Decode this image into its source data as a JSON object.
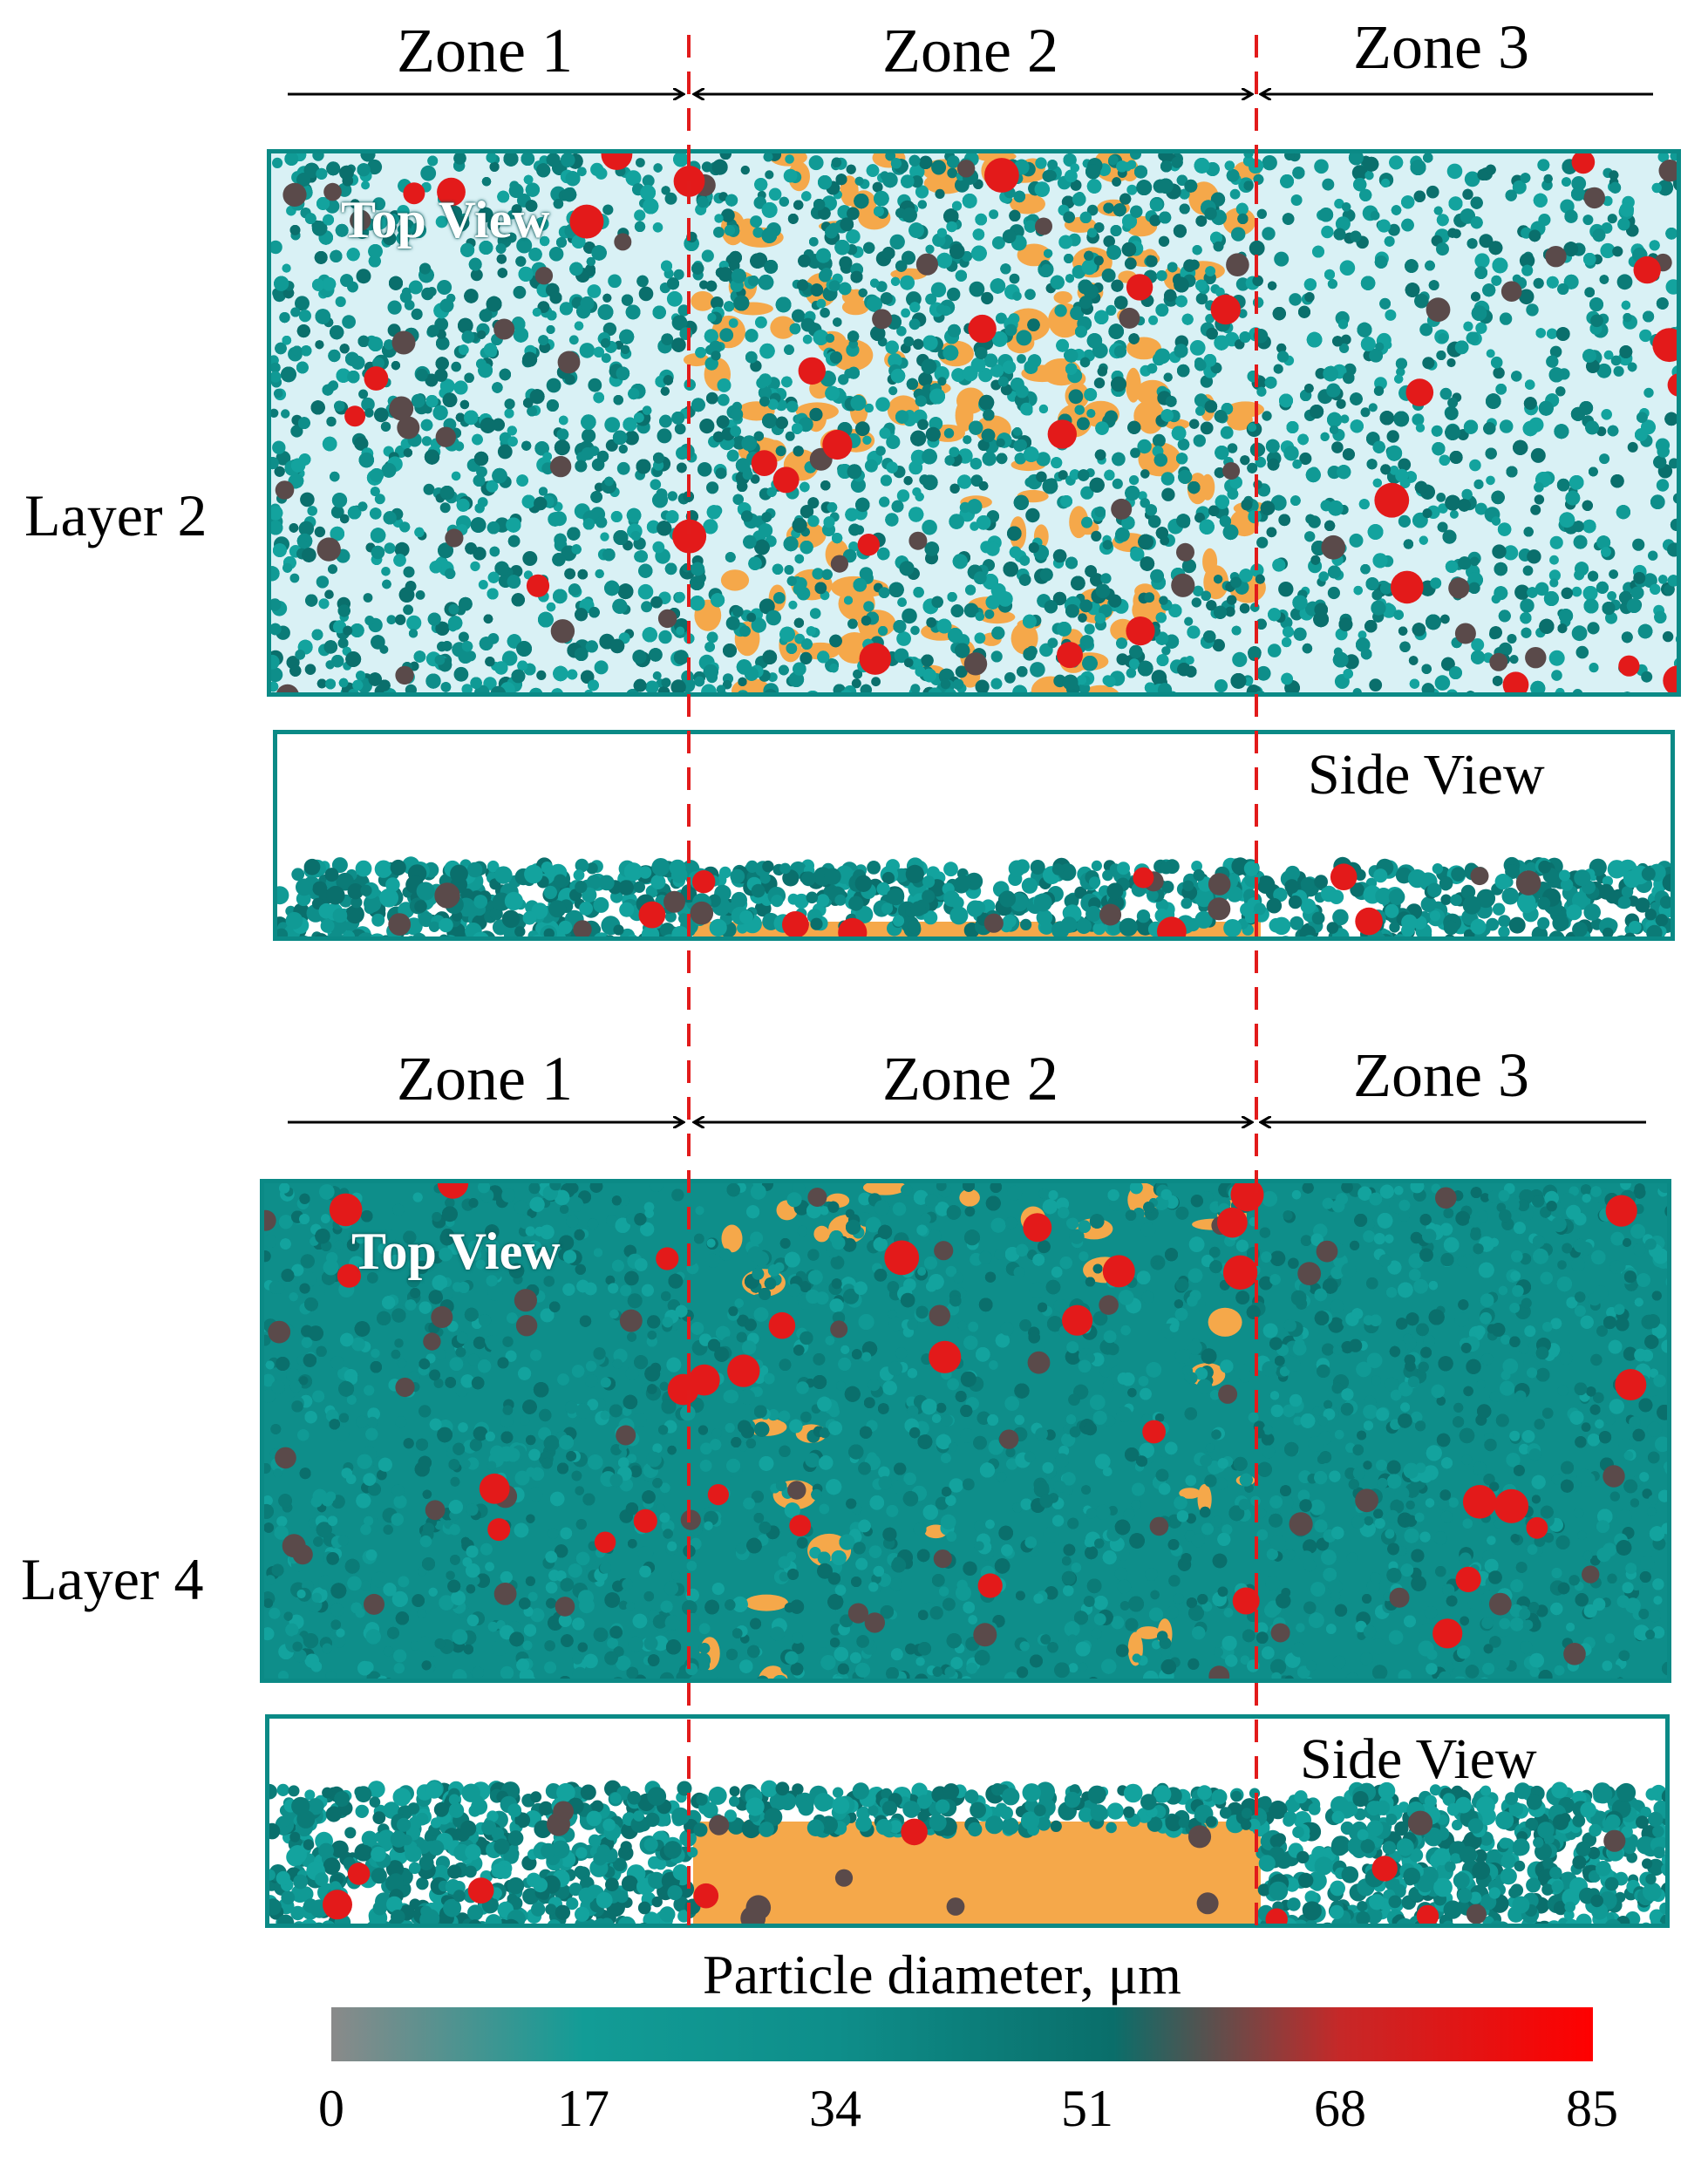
{
  "layers": [
    {
      "label": "Layer 2",
      "zones": [
        "Zone 1",
        "Zone 2",
        "Zone 3"
      ],
      "top_view_label": "Top View",
      "side_view_label": "Side View"
    },
    {
      "label": "Layer 4",
      "zones": [
        "Zone 1",
        "Zone 2",
        "Zone 3"
      ],
      "top_view_label": "Top View",
      "side_view_label": "Side View"
    }
  ],
  "colorbar": {
    "title": "Particle diameter, μm",
    "ticks": [
      "0",
      "17",
      "34",
      "51",
      "68",
      "85"
    ],
    "range": [
      0,
      85
    ],
    "colors": [
      "#8a8a8a",
      "#0e8e8a",
      "#0b7f7b",
      "#0a6e6a",
      "#c62828",
      "#ff0000"
    ]
  },
  "colors": {
    "panel_border": "#0b8a86",
    "particle_small": "#0e8e8a",
    "particle_mid": "#5a4a4a",
    "particle_large": "#e31a1a",
    "melt_pool": "#f5a84a",
    "background_gap": "#d9f1f5",
    "zone_divider": "#e21b1b"
  }
}
